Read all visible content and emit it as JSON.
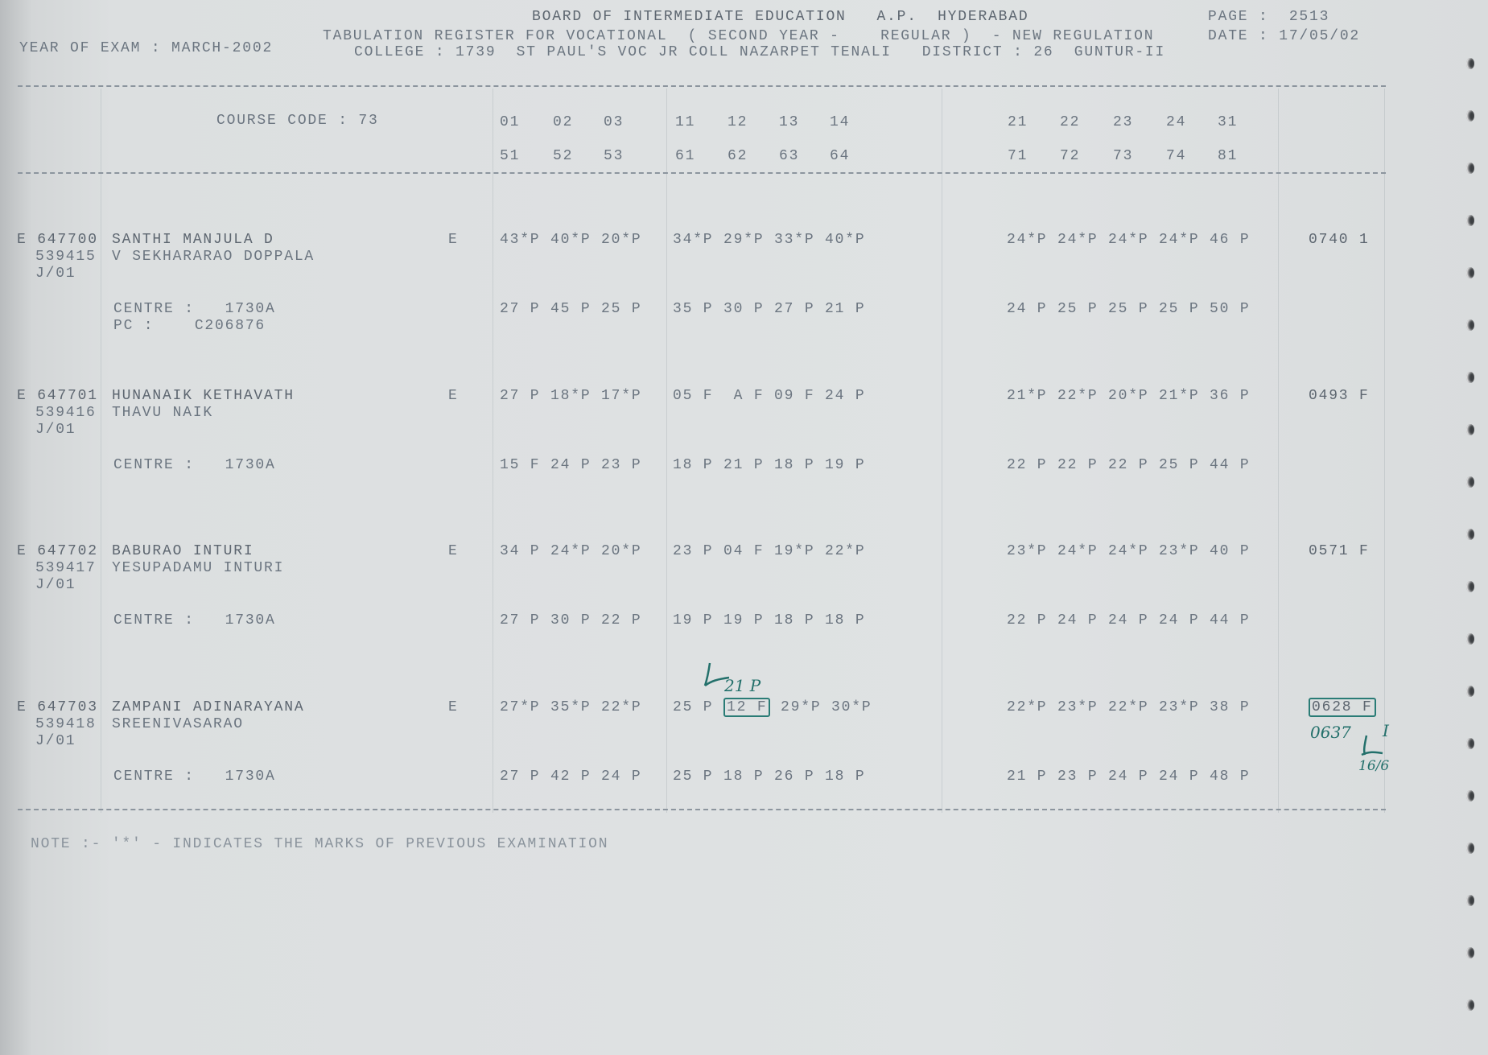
{
  "header": {
    "board": "BOARD OF INTERMEDIATE EDUCATION   A.P.  HYDERABAD",
    "register": "TABULATION REGISTER FOR VOCATIONAL  ( SECOND YEAR -    REGULAR )  - NEW REGULATION",
    "college": "COLLEGE : 1739  ST PAUL'S VOC JR COLL NAZARPET TENALI   DISTRICT : 26  GUNTUR-II",
    "year_of_exam": "YEAR OF EXAM : MARCH-2002",
    "page": "PAGE :  2513",
    "date": "DATE : 17/05/02"
  },
  "columns": {
    "course_code": "COURSE CODE : 73",
    "row1": [
      "01",
      "02",
      "03",
      "11",
      "12",
      "13",
      "14",
      "21",
      "22",
      "23",
      "24",
      "31"
    ],
    "row2": [
      "51",
      "52",
      "53",
      "61",
      "62",
      "63",
      "64",
      "71",
      "72",
      "73",
      "74",
      "81"
    ]
  },
  "students": [
    {
      "id": "E 647700",
      "code": "539415",
      "batch": "J/01",
      "name": "SANTHI MANJULA D",
      "parent": "V SEKHARARAO DOPPALA",
      "medium": "E",
      "centre": "CENTRE :   1730A",
      "pc": "PC :    C206876",
      "m1": [
        "43*P 40*P 20*P",
        "34*P 29*P 33*P 40*P",
        "24*P 24*P 24*P 24*P 46 P"
      ],
      "m2": [
        "27 P 45 P 25 P",
        "35 P 30 P 27 P 21 P",
        "24 P 25 P 25 P 25 P 50 P"
      ],
      "result": "0740 1"
    },
    {
      "id": "E 647701",
      "code": "539416",
      "batch": "J/01",
      "name": "HUNANAIK KETHAVATH",
      "parent": "THAVU NAIK",
      "medium": "E",
      "centre": "CENTRE :   1730A",
      "pc": "",
      "m1": [
        "27 P 18*P 17*P",
        "05 F  A F 09 F 24 P",
        "21*P 22*P 20*P 21*P 36 P"
      ],
      "m2": [
        "15 F 24 P 23 P",
        "18 P 21 P 18 P 19 P",
        "22 P 22 P 22 P 25 P 44 P"
      ],
      "result": "0493 F"
    },
    {
      "id": "E 647702",
      "code": "539417",
      "batch": "J/01",
      "name": "BABURAO INTURI",
      "parent": "YESUPADAMU INTURI",
      "medium": "E",
      "centre": "CENTRE :   1730A",
      "pc": "",
      "m1": [
        "34 P 24*P 20*P",
        "23 P 04 F 19*P 22*P",
        "23*P 24*P 24*P 23*P 40 P"
      ],
      "m2": [
        "27 P 30 P 22 P",
        "19 P 19 P 18 P 18 P",
        "22 P 24 P 24 P 24 P 44 P"
      ],
      "result": "0571 F"
    },
    {
      "id": "E 647703",
      "code": "539418",
      "batch": "J/01",
      "name": "ZAMPANI ADINARAYANA",
      "parent": "SREENIVASARAO",
      "medium": "E",
      "centre": "CENTRE :   1730A",
      "pc": "",
      "m1": [
        "27*P 35*P 22*P",
        "",
        "22*P 23*P 22*P 23*P 38 P"
      ],
      "m1_parts": [
        "25 P ",
        "12 F",
        " 29*P 30*P"
      ],
      "m2": [
        "27 P 42 P 24 P",
        "25 P 18 P 26 P 18 P",
        "21 P 23 P 24 P 24 P 48 P"
      ],
      "result": "0628 F"
    }
  ],
  "annotations": {
    "correction": "21 P",
    "revised_total": "0637",
    "revised_result": "I",
    "initial_date": "16/6"
  },
  "note": "NOTE :- '*' - INDICATES THE MARKS OF PREVIOUS EXAMINATION",
  "colors": {
    "print": "#6b7580",
    "ink": "#23706b",
    "paper": "#dcdfe0"
  }
}
